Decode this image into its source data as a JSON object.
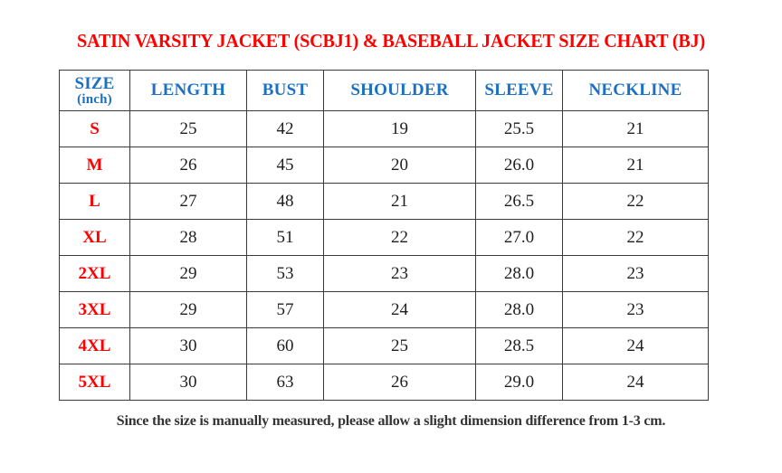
{
  "title": "SATIN VARSITY JACKET (SCBJ1) & BASEBALL JACKET SIZE CHART (BJ)",
  "footnote": "Since the size is manually measured, please allow a slight dimension difference from 1-3 cm.",
  "colors": {
    "title_red": "#fe0000",
    "header_blue": "#1b70c2",
    "size_label_red": "#fe0000",
    "body_text": "#1f1f1f",
    "border": "#3b3b3b",
    "background": "#ffffff"
  },
  "table": {
    "header": {
      "size_label": "SIZE",
      "size_unit": "(inch)",
      "length": "LENGTH",
      "bust": "BUST",
      "shoulder": "SHOULDER",
      "sleeve": "SLEEVE",
      "neckline": "NECKLINE"
    },
    "rows": [
      {
        "size": "S",
        "length": "25",
        "bust": "42",
        "shoulder": "19",
        "sleeve": "25.5",
        "neckline": "21"
      },
      {
        "size": "M",
        "length": "26",
        "bust": "45",
        "shoulder": "20",
        "sleeve": "26.0",
        "neckline": "21"
      },
      {
        "size": "L",
        "length": "27",
        "bust": "48",
        "shoulder": "21",
        "sleeve": "26.5",
        "neckline": "22"
      },
      {
        "size": "XL",
        "length": "28",
        "bust": "51",
        "shoulder": "22",
        "sleeve": "27.0",
        "neckline": "22"
      },
      {
        "size": "2XL",
        "length": "29",
        "bust": "53",
        "shoulder": "23",
        "sleeve": "28.0",
        "neckline": "23"
      },
      {
        "size": "3XL",
        "length": "29",
        "bust": "57",
        "shoulder": "24",
        "sleeve": "28.0",
        "neckline": "23"
      },
      {
        "size": "4XL",
        "length": "30",
        "bust": "60",
        "shoulder": "25",
        "sleeve": "28.5",
        "neckline": "24"
      },
      {
        "size": "5XL",
        "length": "30",
        "bust": "63",
        "shoulder": "26",
        "sleeve": "29.0",
        "neckline": "24"
      }
    ]
  },
  "chart_data": {
    "type": "table",
    "title": "SATIN VARSITY JACKET (SCBJ1) & BASEBALL JACKET SIZE CHART (BJ)",
    "unit": "inch",
    "columns": [
      "SIZE (inch)",
      "LENGTH",
      "BUST",
      "SHOULDER",
      "SLEEVE",
      "NECKLINE"
    ],
    "rows": [
      [
        "S",
        25,
        42,
        19,
        25.5,
        21
      ],
      [
        "M",
        26,
        45,
        20,
        26.0,
        21
      ],
      [
        "L",
        27,
        48,
        21,
        26.5,
        22
      ],
      [
        "XL",
        28,
        51,
        22,
        27.0,
        22
      ],
      [
        "2XL",
        29,
        53,
        23,
        28.0,
        23
      ],
      [
        "3XL",
        29,
        57,
        24,
        28.0,
        23
      ],
      [
        "4XL",
        30,
        60,
        25,
        28.5,
        24
      ],
      [
        "5XL",
        30,
        63,
        26,
        29.0,
        24
      ]
    ],
    "footnote": "Since the size is manually measured, please allow a slight dimension difference from 1-3 cm."
  }
}
